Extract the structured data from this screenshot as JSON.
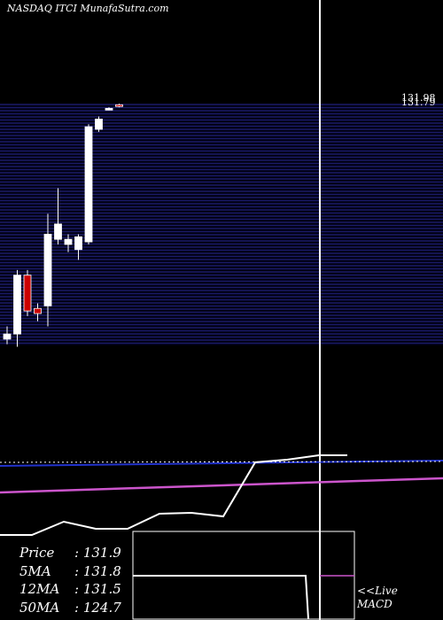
{
  "header": {
    "title": "NASDAQ ITCI MunafaSutra.com"
  },
  "stats": [
    {
      "label": "Price",
      "value": "131.9"
    },
    {
      "label": "5MA",
      "value": "131.8"
    },
    {
      "label": "12MA",
      "value": "131.5"
    },
    {
      "label": "50MA",
      "value": "124.7"
    }
  ],
  "macd": {
    "label": "<<Live",
    "sub": "MACD"
  },
  "colors": {
    "background": "#000000",
    "band": "#1a1a66",
    "up": "#ffffff",
    "down": "#cc0000",
    "line": "#ffffff",
    "ma_blue": "#2233cc",
    "ma_pink": "#cc55cc"
  },
  "chart_data": {
    "type": "candlestick",
    "price_labels": [
      "131.98",
      "131.79"
    ],
    "candles": [
      {
        "o": 85.5,
        "h": 88.0,
        "l": 84.5,
        "c": 86.5
      },
      {
        "o": 86.5,
        "h": 99.0,
        "l": 84.0,
        "c": 98.0
      },
      {
        "o": 98.0,
        "h": 99.0,
        "l": 90.0,
        "c": 91.0
      },
      {
        "o": 91.5,
        "h": 92.5,
        "l": 89.0,
        "c": 90.5
      },
      {
        "o": 92.0,
        "h": 110.0,
        "l": 88.0,
        "c": 106.0
      },
      {
        "o": 105.0,
        "h": 115.0,
        "l": 104.0,
        "c": 108.0
      },
      {
        "o": 104.0,
        "h": 106.0,
        "l": 102.5,
        "c": 105.0
      },
      {
        "o": 103.0,
        "h": 106.0,
        "l": 101.0,
        "c": 105.5
      },
      {
        "o": 104.5,
        "h": 127.5,
        "l": 104.0,
        "c": 127.0
      },
      {
        "o": 126.5,
        "h": 129.0,
        "l": 126.0,
        "c": 128.5
      },
      {
        "o": 130.5,
        "h": 130.8,
        "l": 130.2,
        "c": 130.6
      },
      {
        "o": 131.3,
        "h": 131.5,
        "l": 130.8,
        "c": 131.0
      }
    ]
  }
}
